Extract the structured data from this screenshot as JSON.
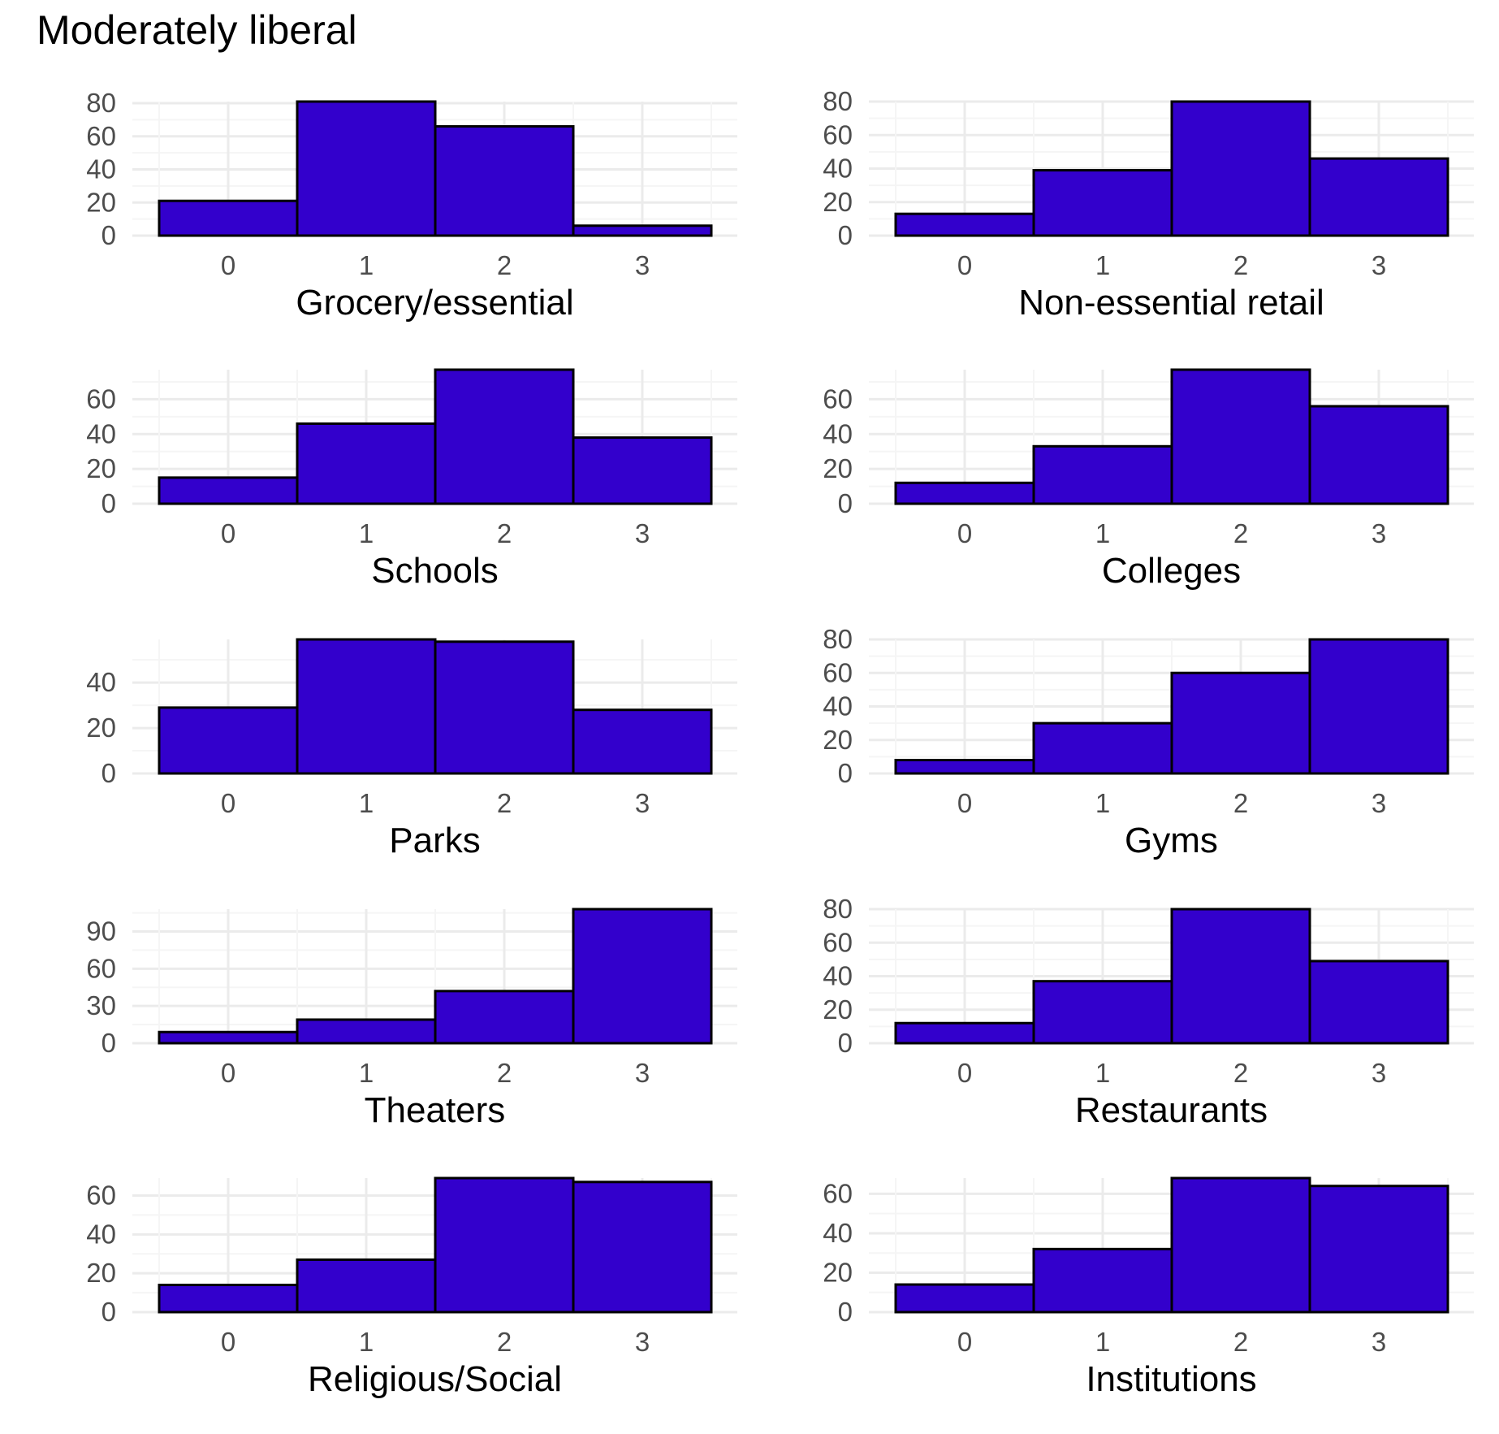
{
  "title": "Moderately liberal",
  "chart_data": [
    {
      "type": "bar",
      "xlabel": "Grocery/essential",
      "categories": [
        "0",
        "1",
        "2",
        "3"
      ],
      "values": [
        21,
        81,
        66,
        6
      ],
      "ylim": [
        0,
        81
      ],
      "yticks": [
        "0",
        "20",
        "40",
        "60",
        "80"
      ],
      "grid": true
    },
    {
      "type": "bar",
      "xlabel": "Non-essential retail",
      "categories": [
        "0",
        "1",
        "2",
        "3"
      ],
      "values": [
        13,
        39,
        80,
        46
      ],
      "ylim": [
        0,
        80
      ],
      "yticks": [
        "0",
        "20",
        "40",
        "60",
        "80"
      ],
      "grid": true
    },
    {
      "type": "bar",
      "xlabel": "Schools",
      "categories": [
        "0",
        "1",
        "2",
        "3"
      ],
      "values": [
        15,
        46,
        77,
        38
      ],
      "ylim": [
        0,
        77
      ],
      "yticks": [
        "0",
        "20",
        "40",
        "60",
        "80"
      ],
      "grid": true
    },
    {
      "type": "bar",
      "xlabel": "Colleges",
      "categories": [
        "0",
        "1",
        "2",
        "3"
      ],
      "values": [
        12,
        33,
        77,
        56
      ],
      "ylim": [
        0,
        77
      ],
      "yticks": [
        "0",
        "20",
        "40",
        "60"
      ],
      "grid": true
    },
    {
      "type": "bar",
      "xlabel": "Parks",
      "categories": [
        "0",
        "1",
        "2",
        "3"
      ],
      "values": [
        29,
        59,
        58,
        28
      ],
      "ylim": [
        0,
        59
      ],
      "yticks": [
        "0",
        "20",
        "40",
        "60"
      ],
      "grid": true
    },
    {
      "type": "bar",
      "xlabel": "Gyms",
      "categories": [
        "0",
        "1",
        "2",
        "3"
      ],
      "values": [
        8,
        30,
        60,
        80
      ],
      "ylim": [
        0,
        80
      ],
      "yticks": [
        "0",
        "20",
        "40",
        "60",
        "80"
      ],
      "grid": true
    },
    {
      "type": "bar",
      "xlabel": "Theaters",
      "categories": [
        "0",
        "1",
        "2",
        "3"
      ],
      "values": [
        9,
        19,
        42,
        108
      ],
      "ylim": [
        0,
        108
      ],
      "yticks": [
        "0",
        "30",
        "60",
        "90"
      ],
      "grid": true
    },
    {
      "type": "bar",
      "xlabel": "Restaurants",
      "categories": [
        "0",
        "1",
        "2",
        "3"
      ],
      "values": [
        12,
        37,
        80,
        49
      ],
      "ylim": [
        0,
        80
      ],
      "yticks": [
        "0",
        "20",
        "40",
        "60",
        "80"
      ],
      "grid": true
    },
    {
      "type": "bar",
      "xlabel": "Religious/Social",
      "categories": [
        "0",
        "1",
        "2",
        "3"
      ],
      "values": [
        14,
        27,
        69,
        67
      ],
      "ylim": [
        0,
        69
      ],
      "yticks": [
        "0",
        "20",
        "40",
        "60"
      ],
      "grid": true
    },
    {
      "type": "bar",
      "xlabel": "Institutions",
      "categories": [
        "0",
        "1",
        "2",
        "3"
      ],
      "values": [
        14,
        32,
        68,
        64
      ],
      "ylim": [
        0,
        68
      ],
      "yticks": [
        "0",
        "20",
        "40",
        "60"
      ],
      "grid": true
    }
  ],
  "colors": {
    "bar_fill": "#3300cc",
    "bar_stroke": "#000000",
    "grid_major": "#ebebeb",
    "grid_minor": "#f5f5f5",
    "tick_text": "#4d4d4d"
  }
}
